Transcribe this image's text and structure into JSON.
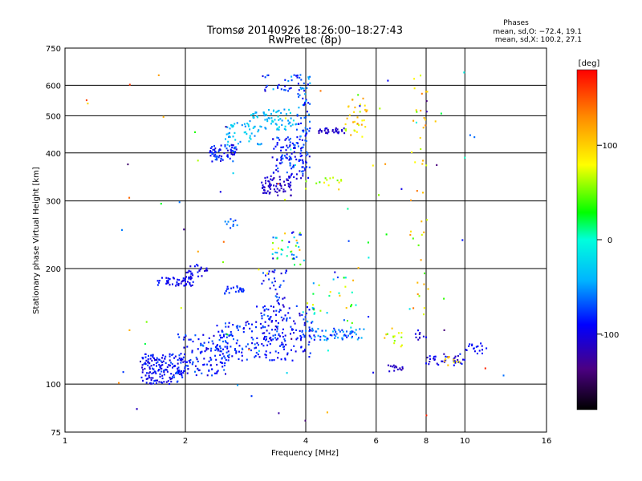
{
  "chart_data": {
    "type": "scatter",
    "title": "Tromsø 20140926 18:26:00–18:27:43",
    "subtitle": "RwPretec (8p)",
    "phase_header": "Phases",
    "phase_stats": [
      "mean, sd,O: −72.4, 19.1",
      "mean, sd,X: 100.2, 27.1"
    ],
    "xlabel": "Frequency [MHz]",
    "ylabel": "Stationary phase Virtual Height [km]",
    "x_scale": "log",
    "y_scale": "log",
    "xlim": [
      1,
      16
    ],
    "ylim": [
      75,
      750
    ],
    "x_ticks": [
      1,
      2,
      4,
      6,
      8,
      10,
      16
    ],
    "y_ticks": [
      75,
      100,
      200,
      300,
      400,
      500,
      600,
      750
    ],
    "x_grid": [
      2,
      4,
      6,
      8,
      10
    ],
    "y_grid": [
      100,
      200,
      300,
      400,
      500,
      600
    ],
    "colorbar": {
      "label": "[deg]",
      "range": [
        -180,
        180
      ],
      "ticks": [
        100,
        0,
        -100
      ]
    },
    "clusters": [
      {
        "f": [
          1.55,
          2.0
        ],
        "h": [
          100,
          120
        ],
        "phase": [
          -110,
          -70
        ],
        "n": 160
      },
      {
        "f": [
          1.9,
          2.6
        ],
        "h": [
          105,
          135
        ],
        "phase": [
          -110,
          -60
        ],
        "n": 130
      },
      {
        "f": [
          2.4,
          3.0
        ],
        "h": [
          115,
          145
        ],
        "phase": [
          -100,
          -60
        ],
        "n": 80
      },
      {
        "f": [
          3.0,
          4.2
        ],
        "h": [
          115,
          160
        ],
        "phase": [
          -110,
          -70
        ],
        "n": 140
      },
      {
        "f": [
          1.7,
          2.1
        ],
        "h": [
          180,
          190
        ],
        "phase": [
          -110,
          -80
        ],
        "n": 50
      },
      {
        "f": [
          2.0,
          2.3
        ],
        "h": [
          190,
          205
        ],
        "phase": [
          -110,
          -80
        ],
        "n": 25
      },
      {
        "f": [
          2.5,
          2.8
        ],
        "h": [
          172,
          180
        ],
        "phase": [
          -90,
          -70
        ],
        "n": 25
      },
      {
        "f": [
          3.1,
          3.6
        ],
        "h": [
          130,
          200
        ],
        "phase": [
          -110,
          -60
        ],
        "n": 70
      },
      {
        "f": [
          3.3,
          3.9
        ],
        "h": [
          200,
          250
        ],
        "phase": [
          -110,
          120
        ],
        "n": 40
      },
      {
        "f": [
          3.1,
          3.7
        ],
        "h": [
          310,
          350
        ],
        "phase": [
          -120,
          -100
        ],
        "n": 70
      },
      {
        "f": [
          3.3,
          4.1
        ],
        "h": [
          340,
          440
        ],
        "phase": [
          -110,
          -60
        ],
        "n": 120
      },
      {
        "f": [
          2.3,
          2.7
        ],
        "h": [
          380,
          420
        ],
        "phase": [
          -110,
          -60
        ],
        "n": 70
      },
      {
        "f": [
          2.5,
          3.1
        ],
        "h": [
          420,
          480
        ],
        "phase": [
          -60,
          -20
        ],
        "n": 50
      },
      {
        "f": [
          2.9,
          3.8
        ],
        "h": [
          460,
          520
        ],
        "phase": [
          -60,
          -10
        ],
        "n": 70
      },
      {
        "f": [
          3.8,
          4.1
        ],
        "h": [
          440,
          640
        ],
        "phase": [
          -100,
          -40
        ],
        "n": 60
      },
      {
        "f": [
          3.1,
          3.8
        ],
        "h": [
          580,
          640
        ],
        "phase": [
          -110,
          -40
        ],
        "n": 25
      },
      {
        "f": [
          4.3,
          5.0
        ],
        "h": [
          450,
          465
        ],
        "phase": [
          -120,
          -100
        ],
        "n": 35
      },
      {
        "f": [
          5.0,
          5.8
        ],
        "h": [
          440,
          560
        ],
        "phase": [
          60,
          140
        ],
        "n": 35
      },
      {
        "f": [
          4.0,
          5.0
        ],
        "h": [
          320,
          360
        ],
        "phase": [
          40,
          110
        ],
        "n": 15
      },
      {
        "f": [
          4.0,
          5.6
        ],
        "h": [
          130,
          140
        ],
        "phase": [
          -90,
          -40
        ],
        "n": 60
      },
      {
        "f": [
          4.0,
          5.4
        ],
        "h": [
          140,
          190
        ],
        "phase": [
          -90,
          120
        ],
        "n": 30
      },
      {
        "f": [
          6.4,
          7.0
        ],
        "h": [
          108,
          112
        ],
        "phase": [
          -120,
          -100
        ],
        "n": 15
      },
      {
        "f": [
          6.3,
          7.0
        ],
        "h": [
          125,
          140
        ],
        "phase": [
          50,
          110
        ],
        "n": 14
      },
      {
        "f": [
          7.5,
          8.0
        ],
        "h": [
          130,
          140
        ],
        "phase": [
          -120,
          -90
        ],
        "n": 10
      },
      {
        "f": [
          8.0,
          10.0
        ],
        "h": [
          112,
          120
        ],
        "phase": [
          -120,
          -80
        ],
        "n": 40
      },
      {
        "f": [
          8.9,
          9.7
        ],
        "h": [
          112,
          118
        ],
        "phase": [
          60,
          120
        ],
        "n": 10
      },
      {
        "f": [
          10.0,
          11.4
        ],
        "h": [
          120,
          128
        ],
        "phase": [
          -100,
          -80
        ],
        "n": 18
      },
      {
        "f": [
          7.3,
          8.1
        ],
        "h": [
          150,
          650
        ],
        "phase": [
          40,
          140
        ],
        "n": 40
      },
      {
        "f": [
          2.5,
          2.7
        ],
        "h": [
          255,
          275
        ],
        "phase": [
          -80,
          -40
        ],
        "n": 10
      },
      {
        "f": [
          1.1,
          12.5
        ],
        "h": [
          80,
          650
        ],
        "phase": [
          -150,
          170
        ],
        "n": 90
      }
    ]
  }
}
